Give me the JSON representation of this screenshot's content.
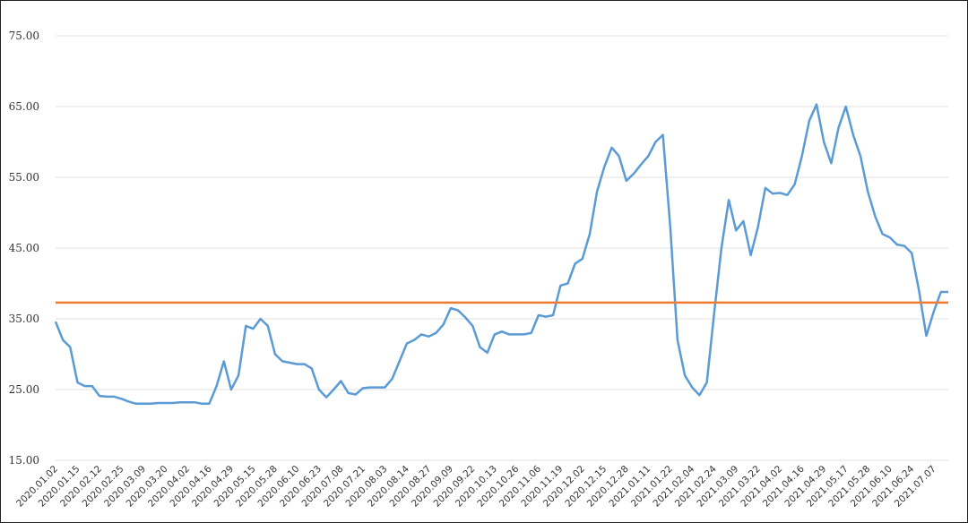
{
  "chart_data": {
    "type": "line",
    "categories": [
      "2020.01.02",
      null,
      null,
      "2020.01.15",
      null,
      null,
      "2020.02.12",
      null,
      null,
      "2020.02.25",
      null,
      null,
      "2020.03.09",
      null,
      null,
      "2020.03.20",
      null,
      null,
      "2020.04.02",
      null,
      null,
      "2020.04.16",
      null,
      null,
      "2020.04.29",
      null,
      null,
      "2020.05.15",
      null,
      null,
      "2020.05.28",
      null,
      null,
      "2020.06.10",
      null,
      null,
      "2020.06.23",
      null,
      null,
      "2020.07.08",
      null,
      null,
      "2020.07.21",
      null,
      null,
      "2020.08.03",
      null,
      null,
      "2020.08.14",
      null,
      null,
      "2020.08.27",
      null,
      null,
      "2020.09.09",
      null,
      null,
      "2020.09.22",
      null,
      null,
      "2020.10.13",
      null,
      null,
      "2020.10.26",
      null,
      null,
      "2020.11.06",
      null,
      null,
      "2020.11.19",
      null,
      null,
      "2020.12.02",
      null,
      null,
      "2020.12.15",
      null,
      null,
      "2020.12.28",
      null,
      null,
      "2021.01.11",
      null,
      null,
      "2021.01.22",
      null,
      null,
      "2021.02.04",
      null,
      null,
      "2021.02.24",
      null,
      null,
      "2021.03.09",
      null,
      null,
      "2021.03.22",
      null,
      null,
      "2021.04.02",
      null,
      null,
      "2021.04.16",
      null,
      null,
      "2021.04.29",
      null,
      null,
      "2021.05.17",
      null,
      null,
      "2021.05.28",
      null,
      null,
      "2021.06.10",
      null,
      null,
      "2021.06.24",
      null,
      null,
      "2021.07.07",
      null,
      null
    ],
    "series": [
      {
        "color": "#5b9bd5",
        "values": [
          34.6,
          32,
          31,
          26,
          25.5,
          25.5,
          24.1,
          24,
          24,
          23.7,
          23.3,
          23,
          23,
          23,
          23.1,
          23.1,
          23.1,
          23.2,
          23.2,
          23.2,
          23,
          23,
          25.5,
          29,
          25,
          27,
          34,
          33.6,
          35,
          34,
          30,
          29,
          28.8,
          28.6,
          28.6,
          28,
          25,
          23.9,
          25,
          26.2,
          24.5,
          24.3,
          25.2,
          25.3,
          25.3,
          25.3,
          26.5,
          29,
          31.5,
          32,
          32.8,
          32.5,
          33,
          34.2,
          36.5,
          36.2,
          35.2,
          34,
          31,
          30.2,
          32.8,
          33.2,
          32.8,
          32.8,
          32.8,
          33,
          35.5,
          35.3,
          35.5,
          39.7,
          40,
          42.8,
          43.5,
          47,
          53,
          56.5,
          59.2,
          58,
          54.5,
          55.5,
          56.8,
          58,
          60,
          61,
          48,
          32,
          27,
          25.3,
          24.2,
          26,
          35.8,
          45,
          51.8,
          47.5,
          48.8,
          44,
          48,
          53.5,
          52.7,
          52.8,
          52.5,
          54,
          58,
          63,
          65.3,
          60,
          57,
          62,
          65,
          61,
          58,
          53,
          49.5,
          47,
          46.5,
          45.5,
          45.3,
          44.3,
          39,
          32.6,
          36,
          38.8,
          38.8
        ]
      }
    ],
    "hline": {
      "value": 37.3,
      "color": "#ed7d31"
    },
    "ylim": [
      15,
      75
    ],
    "yticks": [
      {
        "value": 15,
        "label": "15.00"
      },
      {
        "value": 25,
        "label": "25.00"
      },
      {
        "value": 35,
        "label": "35.00"
      },
      {
        "value": 45,
        "label": "45.00"
      },
      {
        "value": 55,
        "label": "55.00"
      },
      {
        "value": 65,
        "label": "65.00"
      },
      {
        "value": 75,
        "label": "75.00"
      }
    ],
    "grid": true
  }
}
